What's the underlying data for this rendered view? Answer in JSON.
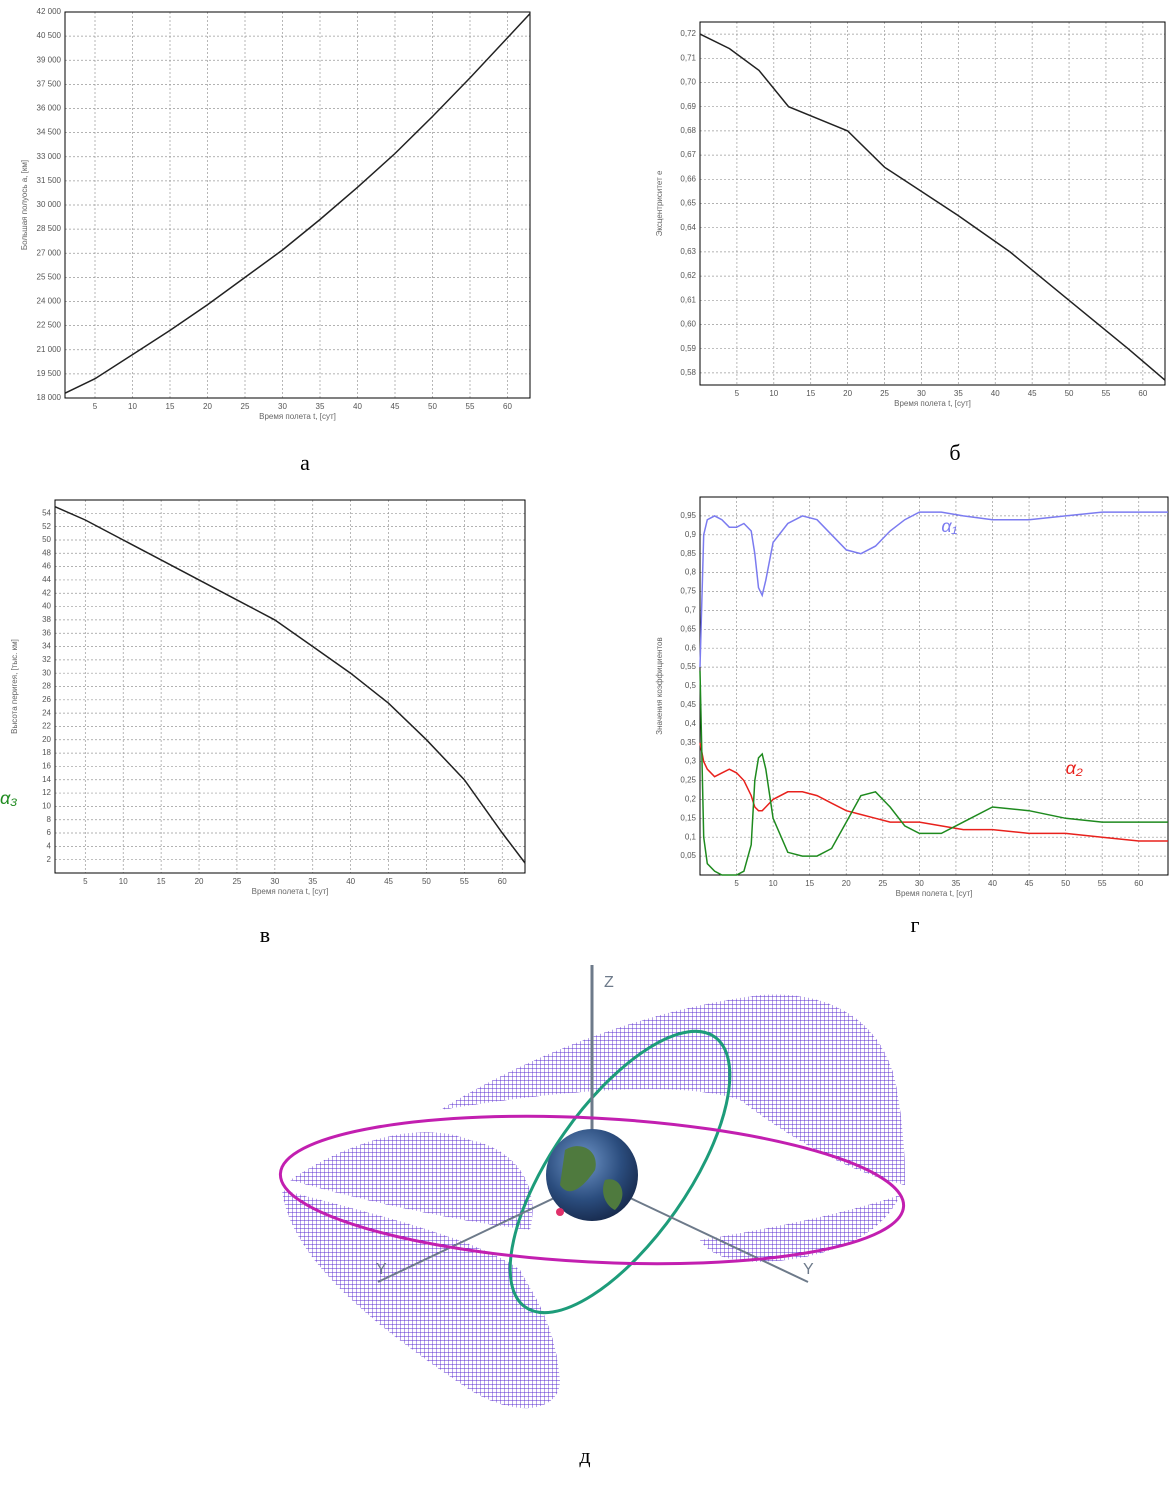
{
  "chart_data": [
    {
      "type": "line",
      "caption": "а",
      "x_label": "Время полета t, [сут]",
      "y_label": "Большая полуось a, [км]",
      "x": [
        1,
        5,
        10,
        15,
        20,
        25,
        30,
        35,
        40,
        45,
        50,
        55,
        60,
        63
      ],
      "values": [
        18300,
        19200,
        20700,
        22200,
        23800,
        25500,
        27200,
        29100,
        31100,
        33200,
        35500,
        37900,
        40400,
        41900
      ],
      "color": "#222",
      "xlim": [
        1,
        63
      ],
      "ylim": [
        18000,
        42000
      ],
      "xticks": [
        5,
        10,
        15,
        20,
        25,
        30,
        35,
        40,
        45,
        50,
        55,
        60
      ],
      "yticks": [
        {
          "value": 18000,
          "label": "18 000"
        },
        {
          "value": 19500,
          "label": "19 500"
        },
        {
          "value": 21000,
          "label": "21 000"
        },
        {
          "value": 22500,
          "label": "22 500"
        },
        {
          "value": 24000,
          "label": "24 000"
        },
        {
          "value": 25500,
          "label": "25 500"
        },
        {
          "value": 27000,
          "label": "27 000"
        },
        {
          "value": 28500,
          "label": "28 500"
        },
        {
          "value": 30000,
          "label": "30 000"
        },
        {
          "value": 31500,
          "label": "31 500"
        },
        {
          "value": 33000,
          "label": "33 000"
        },
        {
          "value": 34500,
          "label": "34 500"
        },
        {
          "value": 36000,
          "label": "36 000"
        },
        {
          "value": 37500,
          "label": "37 500"
        },
        {
          "value": 39000,
          "label": "39 000"
        },
        {
          "value": 40500,
          "label": "40 500"
        },
        {
          "value": 42000,
          "label": "42 000"
        }
      ],
      "grid": true
    },
    {
      "type": "line",
      "caption": "б",
      "x_label": "Время полета t, [сут]",
      "y_label": "Эксцентриситет e",
      "x": [
        0,
        4,
        8,
        12,
        16,
        20,
        25,
        30,
        35,
        42,
        50,
        58,
        63
      ],
      "values": [
        0.72,
        0.714,
        0.705,
        0.69,
        0.685,
        0.68,
        0.665,
        0.655,
        0.645,
        0.63,
        0.61,
        0.59,
        0.577
      ],
      "color": "#222",
      "xlim": [
        0,
        63
      ],
      "ylim": [
        0.575,
        0.725
      ],
      "xticks": [
        5,
        10,
        15,
        20,
        25,
        30,
        35,
        40,
        45,
        50,
        55,
        60
      ],
      "yticks": [
        {
          "value": 0.58,
          "label": "0,58"
        },
        {
          "value": 0.59,
          "label": "0,59"
        },
        {
          "value": 0.6,
          "label": "0,60"
        },
        {
          "value": 0.61,
          "label": "0,61"
        },
        {
          "value": 0.62,
          "label": "0,62"
        },
        {
          "value": 0.63,
          "label": "0,63"
        },
        {
          "value": 0.64,
          "label": "0,64"
        },
        {
          "value": 0.65,
          "label": "0,65"
        },
        {
          "value": 0.66,
          "label": "0,66"
        },
        {
          "value": 0.67,
          "label": "0,67"
        },
        {
          "value": 0.68,
          "label": "0,68"
        },
        {
          "value": 0.69,
          "label": "0,69"
        },
        {
          "value": 0.7,
          "label": "0,70"
        },
        {
          "value": 0.71,
          "label": "0,71"
        },
        {
          "value": 0.72,
          "label": "0,72"
        }
      ],
      "grid": true
    },
    {
      "type": "line",
      "caption": "в",
      "x_label": "Время полета t, [сут]",
      "y_label": "Высота перигея, [тыс. км]",
      "x": [
        1,
        5,
        10,
        15,
        20,
        25,
        30,
        35,
        40,
        45,
        50,
        55,
        60,
        63
      ],
      "values": [
        55,
        53,
        50,
        47,
        44,
        41,
        38,
        34,
        30,
        25.5,
        20,
        14,
        6,
        1.5
      ],
      "color": "#222",
      "xlim": [
        1,
        63
      ],
      "ylim": [
        0,
        56
      ],
      "xticks": [
        5,
        10,
        15,
        20,
        25,
        30,
        35,
        40,
        45,
        50,
        55,
        60
      ],
      "yticks": [
        2,
        4,
        6,
        8,
        10,
        12,
        14,
        16,
        18,
        20,
        22,
        24,
        26,
        28,
        30,
        32,
        34,
        36,
        38,
        40,
        42,
        44,
        46,
        48,
        50,
        52,
        54
      ],
      "grid": true
    },
    {
      "type": "line",
      "caption": "г",
      "x_label": "Время полета t, [сут]",
      "y_label": "Значения коэффициентов",
      "x": [
        0,
        0.5,
        1,
        2,
        3,
        4,
        5,
        6,
        7,
        7.5,
        8,
        8.5,
        9,
        10,
        12,
        14,
        16,
        18,
        20,
        22,
        24,
        26,
        28,
        30,
        33,
        36,
        40,
        45,
        50,
        55,
        60,
        64
      ],
      "series": [
        {
          "name": "α₁",
          "color": "#7b7bf0",
          "values": [
            0.55,
            0.9,
            0.94,
            0.95,
            0.94,
            0.92,
            0.92,
            0.93,
            0.91,
            0.85,
            0.76,
            0.74,
            0.78,
            0.88,
            0.93,
            0.95,
            0.94,
            0.9,
            0.86,
            0.85,
            0.87,
            0.91,
            0.94,
            0.96,
            0.96,
            0.95,
            0.94,
            0.94,
            0.95,
            0.96,
            0.96,
            0.96
          ]
        },
        {
          "name": "α₂",
          "color": "#e8211c",
          "values": [
            0.35,
            0.3,
            0.28,
            0.26,
            0.27,
            0.28,
            0.27,
            0.25,
            0.21,
            0.18,
            0.17,
            0.17,
            0.18,
            0.2,
            0.22,
            0.22,
            0.21,
            0.19,
            0.17,
            0.16,
            0.15,
            0.14,
            0.14,
            0.14,
            0.13,
            0.12,
            0.12,
            0.11,
            0.11,
            0.1,
            0.09,
            0.09
          ]
        },
        {
          "name": "α₃",
          "color": "#1e8a1e",
          "values": [
            0.54,
            0.1,
            0.03,
            0.01,
            0,
            0,
            0,
            0.01,
            0.08,
            0.25,
            0.31,
            0.32,
            0.28,
            0.15,
            0.06,
            0.05,
            0.05,
            0.07,
            0.14,
            0.21,
            0.22,
            0.18,
            0.13,
            0.11,
            0.11,
            0.14,
            0.18,
            0.17,
            0.15,
            0.14,
            0.14,
            0.14
          ]
        }
      ],
      "xlim": [
        0,
        64
      ],
      "ylim": [
        0,
        1
      ],
      "xticks": [
        5,
        10,
        15,
        20,
        25,
        30,
        35,
        40,
        45,
        50,
        55,
        60
      ],
      "yticks": [
        {
          "value": 0.05,
          "label": "0,05"
        },
        {
          "value": 0.1,
          "label": "0,1"
        },
        {
          "value": 0.15,
          "label": "0,15"
        },
        {
          "value": 0.2,
          "label": "0,2"
        },
        {
          "value": 0.25,
          "label": "0,25"
        },
        {
          "value": 0.3,
          "label": "0,3"
        },
        {
          "value": 0.35,
          "label": "0,35"
        },
        {
          "value": 0.4,
          "label": "0,4"
        },
        {
          "value": 0.45,
          "label": "0,45"
        },
        {
          "value": 0.5,
          "label": "0,5"
        },
        {
          "value": 0.55,
          "label": "0,55"
        },
        {
          "value": 0.6,
          "label": "0,6"
        },
        {
          "value": 0.65,
          "label": "0,65"
        },
        {
          "value": 0.7,
          "label": "0,7"
        },
        {
          "value": 0.75,
          "label": "0,75"
        },
        {
          "value": 0.8,
          "label": "0,8"
        },
        {
          "value": 0.85,
          "label": "0,85"
        },
        {
          "value": 0.9,
          "label": "0,9"
        },
        {
          "value": 0.95,
          "label": "0,95"
        }
      ],
      "grid": true
    }
  ],
  "illustration": {
    "axis_labels": [
      "Z",
      "Y",
      "Y"
    ],
    "caption": "д"
  }
}
